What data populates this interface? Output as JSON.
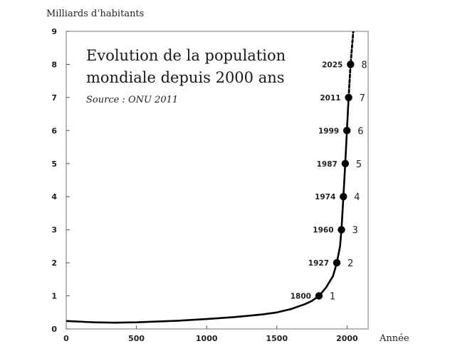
{
  "chart_data": {
    "type": "line",
    "title_line1": "Evolution de la population",
    "title_line2": "mondiale depuis 2000 ans",
    "subtitle": "Source : ONU 2011",
    "ylabel": "Milliards d’habitants",
    "xlabel": "Année",
    "xlim": [
      0,
      2150
    ],
    "ylim": [
      0,
      9
    ],
    "x_ticks": [
      0,
      500,
      1000,
      1500,
      2000
    ],
    "y_ticks": [
      0,
      1,
      2,
      3,
      4,
      5,
      6,
      7,
      8,
      9
    ],
    "grid": false,
    "series": [
      {
        "style": "solid",
        "x": [
          0,
          200,
          350,
          500,
          800,
          1000,
          1200,
          1400,
          1500,
          1600,
          1700,
          1750,
          1800,
          1850,
          1900,
          1927,
          1950,
          1960,
          1974,
          1987,
          1999,
          2011
        ],
        "y": [
          0.24,
          0.2,
          0.19,
          0.2,
          0.25,
          0.3,
          0.36,
          0.44,
          0.5,
          0.6,
          0.75,
          0.85,
          1,
          1.25,
          1.6,
          2,
          2.5,
          3,
          4,
          5,
          6,
          7
        ]
      },
      {
        "style": "dashed",
        "x": [
          2011,
          2025,
          2050
        ],
        "y": [
          7,
          8,
          9.3
        ]
      }
    ],
    "milestones": [
      {
        "year": 1800,
        "value": 1,
        "year_label": "1800",
        "value_label": "1"
      },
      {
        "year": 1927,
        "value": 2,
        "year_label": "1927",
        "value_label": "2"
      },
      {
        "year": 1960,
        "value": 3,
        "year_label": "1960",
        "value_label": "3"
      },
      {
        "year": 1974,
        "value": 4,
        "year_label": "1974",
        "value_label": "4"
      },
      {
        "year": 1987,
        "value": 5,
        "year_label": "1987",
        "value_label": "5"
      },
      {
        "year": 1999,
        "value": 6,
        "year_label": "1999",
        "value_label": "6"
      },
      {
        "year": 2011,
        "value": 7,
        "year_label": "2011",
        "value_label": "7"
      },
      {
        "year": 2025,
        "value": 8,
        "year_label": "2025",
        "value_label": "8"
      }
    ],
    "colors": {
      "line": "#000000",
      "axis": "#333333",
      "text": "#222222"
    }
  }
}
